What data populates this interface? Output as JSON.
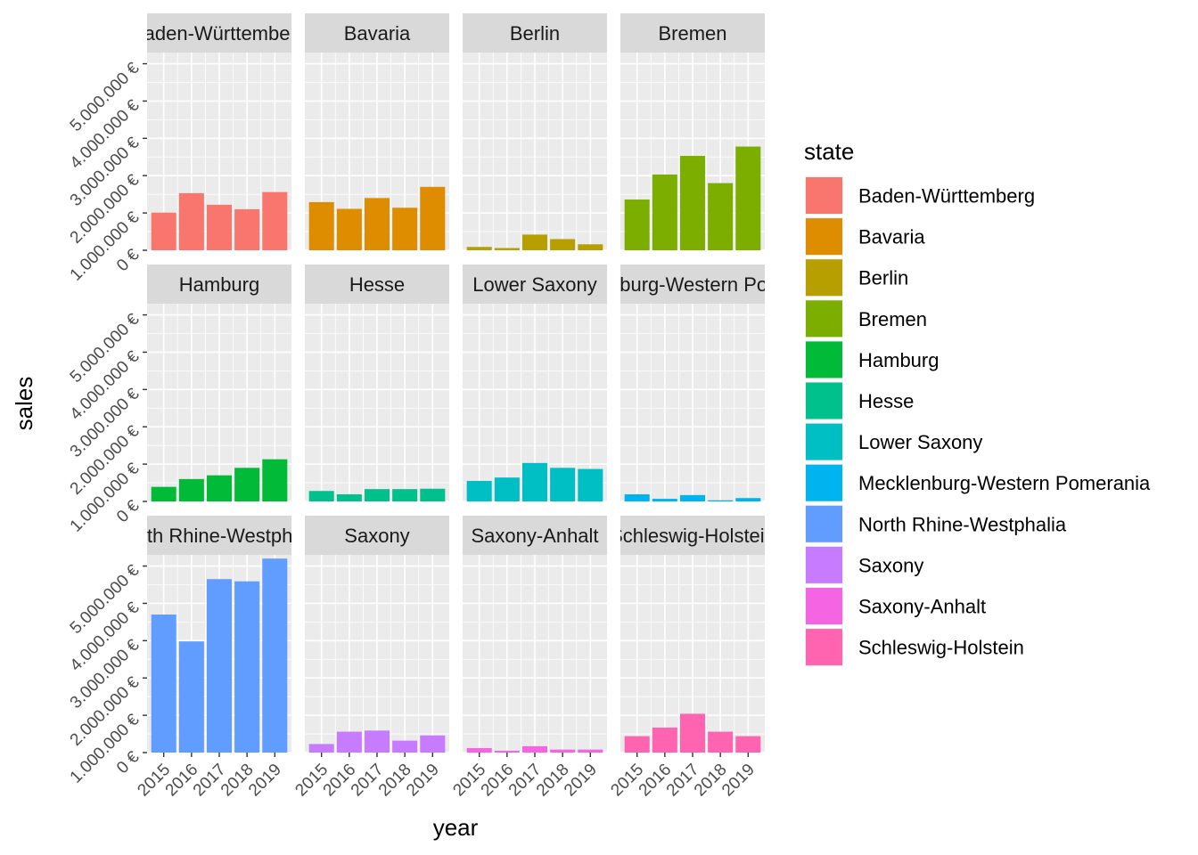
{
  "chart_data": {
    "type": "bar",
    "facet": "state",
    "xlabel": "year",
    "ylabel": "sales",
    "x_tick_labels": [
      "2015",
      "2016",
      "2017",
      "2018",
      "2019"
    ],
    "y_tick_labels": [
      "0 €",
      "1.000.000 €",
      "2.000.000 €",
      "3.000.000 €",
      "4.000.000 €",
      "5.000.000 €"
    ],
    "ylim": [
      0,
      5300000
    ],
    "grid": true,
    "legend_title": "state",
    "legend_position": "right",
    "categories": [
      "2015",
      "2016",
      "2017",
      "2018",
      "2019"
    ],
    "series": [
      {
        "name": "Baden-Württemberg",
        "color": "#F8766D",
        "values": [
          1010000,
          1530000,
          1220000,
          1100000,
          1560000
        ]
      },
      {
        "name": "Bavaria",
        "color": "#DE8C00",
        "values": [
          1290000,
          1110000,
          1400000,
          1140000,
          1700000
        ]
      },
      {
        "name": "Berlin",
        "color": "#B79F00",
        "values": [
          90000,
          60000,
          420000,
          300000,
          160000
        ]
      },
      {
        "name": "Bremen",
        "color": "#7CAE00",
        "values": [
          1360000,
          2030000,
          2530000,
          1800000,
          2780000
        ]
      },
      {
        "name": "Hamburg",
        "color": "#00BA38",
        "values": [
          390000,
          600000,
          700000,
          900000,
          1130000
        ]
      },
      {
        "name": "Hesse",
        "color": "#00C08B",
        "values": [
          280000,
          190000,
          330000,
          330000,
          340000
        ]
      },
      {
        "name": "Lower Saxony",
        "color": "#00BFC4",
        "values": [
          550000,
          640000,
          1030000,
          900000,
          870000
        ]
      },
      {
        "name": "Mecklenburg-Western Pomerania",
        "color": "#00B4F0",
        "values": [
          190000,
          70000,
          170000,
          30000,
          90000
        ]
      },
      {
        "name": "North Rhine-Westphalia",
        "color": "#619CFF",
        "values": [
          3700000,
          2980000,
          4650000,
          4590000,
          5200000
        ]
      },
      {
        "name": "Saxony",
        "color": "#C77CFF",
        "values": [
          230000,
          560000,
          590000,
          320000,
          460000
        ]
      },
      {
        "name": "Saxony-Anhalt",
        "color": "#F564E3",
        "values": [
          120000,
          50000,
          170000,
          80000,
          80000
        ]
      },
      {
        "name": "Schleswig-Holstein",
        "color": "#FF64B0",
        "values": [
          440000,
          670000,
          1040000,
          560000,
          440000
        ]
      }
    ]
  }
}
